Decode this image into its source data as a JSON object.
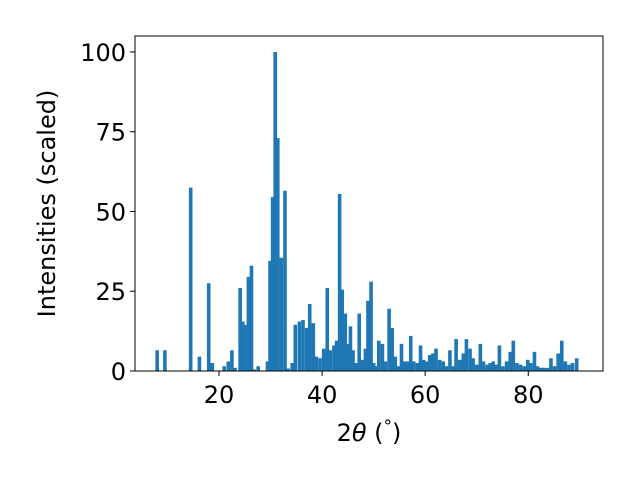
{
  "chart_data": {
    "type": "bar",
    "title": "",
    "xlabel": "2θ (°)",
    "xlabel_parts": {
      "symbol": "θ",
      "prefix": "2",
      "unit": "(",
      "unit_symbol": "°",
      "unit_close": ")"
    },
    "ylabel": "Intensities (scaled)",
    "xlim": [
      3.7,
      94.5
    ],
    "ylim": [
      0,
      105
    ],
    "xticks": [
      20,
      40,
      60,
      80
    ],
    "yticks": [
      0,
      25,
      50,
      75,
      100
    ],
    "grid": false,
    "legend": "none",
    "bar_color": "#1f77b4",
    "bar_width_deg": 0.7,
    "x": [
      8.0,
      9.5,
      14.5,
      16.2,
      18.0,
      18.7,
      21.0,
      21.8,
      22.5,
      23.1,
      24.1,
      24.6,
      25.0,
      25.7,
      26.3,
      26.8,
      27.6,
      29.4,
      29.9,
      30.4,
      30.9,
      31.4,
      32.1,
      32.8,
      33.4,
      34.2,
      34.8,
      35.6,
      36.3,
      37.0,
      37.6,
      38.3,
      38.9,
      39.6,
      40.3,
      41.0,
      41.6,
      42.3,
      42.8,
      43.4,
      43.9,
      44.5,
      44.9,
      45.5,
      46.0,
      46.6,
      47.2,
      47.8,
      48.4,
      48.9,
      49.5,
      50.0,
      50.5,
      51.0,
      51.7,
      52.3,
      53.0,
      53.6,
      54.2,
      54.8,
      55.4,
      56.0,
      56.6,
      57.2,
      57.8,
      58.5,
      59.1,
      59.7,
      60.3,
      60.9,
      61.5,
      62.1,
      62.8,
      63.5,
      64.1,
      64.8,
      65.4,
      66.0,
      66.7,
      67.4,
      68.0,
      68.7,
      69.3,
      70.0,
      70.7,
      71.3,
      72.0,
      72.6,
      73.2,
      73.8,
      74.4,
      75.1,
      75.8,
      76.5,
      77.1,
      77.8,
      78.5,
      79.2,
      79.9,
      80.5,
      81.2,
      81.8,
      82.4,
      83.0,
      83.7,
      84.4,
      85.1,
      85.8,
      86.5,
      87.2,
      87.9,
      88.6,
      89.4
    ],
    "values": [
      6.5,
      6.5,
      57.5,
      4.5,
      27.5,
      2.5,
      1.5,
      3.0,
      6.5,
      1.0,
      26.0,
      15.5,
      14.5,
      29.5,
      33.0,
      0.5,
      1.5,
      3.0,
      34.5,
      54.5,
      100.0,
      73.0,
      35.5,
      56.5,
      0.8,
      2.5,
      14.5,
      15.5,
      16.0,
      13.5,
      21.0,
      15.0,
      4.5,
      4.0,
      7.0,
      26.0,
      6.5,
      8.0,
      9.5,
      55.5,
      25.5,
      18.0,
      8.5,
      14.0,
      6.5,
      2.5,
      18.0,
      3.5,
      7.0,
      22.0,
      28.0,
      2.5,
      1.5,
      9.5,
      8.5,
      3.0,
      19.5,
      13.5,
      4.5,
      1.5,
      8.5,
      3.0,
      3.0,
      11.0,
      3.0,
      2.5,
      8.0,
      3.5,
      3.0,
      5.0,
      5.5,
      7.0,
      3.5,
      3.0,
      1.5,
      6.5,
      1.5,
      10.0,
      3.5,
      5.5,
      10.0,
      7.0,
      4.0,
      2.0,
      8.5,
      3.0,
      2.0,
      2.5,
      3.0,
      2.0,
      8.0,
      1.5,
      3.0,
      6.0,
      9.5,
      2.5,
      2.0,
      1.5,
      3.5,
      2.5,
      6.0,
      1.5,
      1.0,
      1.0,
      1.0,
      4.0,
      1.5,
      5.5,
      9.5,
      3.0,
      2.0,
      2.5,
      4.0
    ]
  }
}
